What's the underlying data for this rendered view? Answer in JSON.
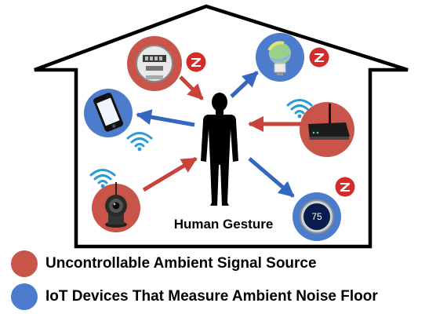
{
  "center_label": "Human Gesture",
  "legend": [
    {
      "label": "Uncontrollable Ambient Signal Source",
      "color": "#c8544a"
    },
    {
      "label": "IoT Devices That Measure Ambient Noise Floor",
      "color": "#4e7ccc"
    }
  ],
  "device_display": {
    "thermostat_value": "75"
  },
  "colors": {
    "ambient_source": "#c8544a",
    "iot_device": "#4e7ccc",
    "arrow_red": "#c8443a",
    "arrow_blue": "#3467c0",
    "zigbee_red": "#d42b2b",
    "wifi_blue": "#2b9bd6",
    "house_outline": "#000000"
  },
  "icons": [
    "house-outline",
    "human-silhouette",
    "power-meter-icon",
    "smart-bulb-icon",
    "smartphone-icon",
    "wifi-router-icon",
    "security-camera-icon",
    "thermostat-icon",
    "zigbee-logo",
    "wifi-icon"
  ]
}
